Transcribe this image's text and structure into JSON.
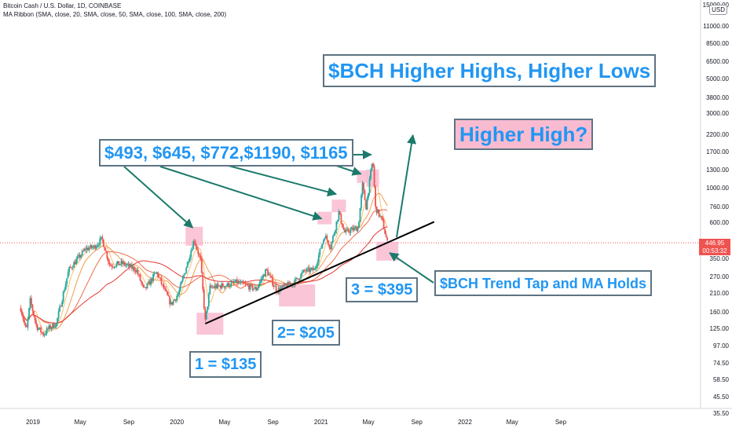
{
  "header": {
    "symbol_line": "Bitcoin Cash / U.S. Dollar, 1D, COINBASE",
    "indicator_line": "MA Ribbon (SMA, close, 20, SMA, close, 50, SMA, close, 100, SMA, close, 200)"
  },
  "currency_button": "USD",
  "price_axis": {
    "ticks": [
      "15000.00",
      "11000.00",
      "8500.00",
      "6500.00",
      "5000.00",
      "3800.00",
      "3000.00",
      "2200.00",
      "1700.00",
      "1300.00",
      "1000.00",
      "760.00",
      "600.00",
      "350.00",
      "270.00",
      "210.00",
      "160.00",
      "125.00",
      "97.00",
      "74.50",
      "58.50",
      "45.50",
      "35.50"
    ],
    "current_price": "446.95",
    "countdown": "00:53:32"
  },
  "time_axis": {
    "ticks": [
      "2019",
      "May",
      "Sep",
      "2020",
      "May",
      "Sep",
      "2021",
      "May",
      "Sep",
      "2022",
      "May",
      "Sep"
    ]
  },
  "annotations": {
    "title": "$BCH Higher Highs, Higher Lows",
    "higher_high": "Higher High?",
    "peaks": "$493, $645, $772,$1190, $1165",
    "low1": "1 = $135",
    "low2": "2= $205",
    "low3": "3 = $395",
    "trend_tap": "$BCH Trend Tap and MA Holds"
  },
  "colors": {
    "up_candle": "#26a69a",
    "down_candle": "#ef5350",
    "ma20": "#f6c26b",
    "ma50": "#f29b4c",
    "ma100": "#ee6a4a",
    "ma200": "#e53935",
    "arrow": "#1b7a6b",
    "trendline": "#000000",
    "callout_text": "#2196f3",
    "callout_border": "#5e7383",
    "pink_box": "#f8bbd0",
    "price_line": "#ef5350"
  },
  "chart_data": {
    "type": "candlestick",
    "title": "Bitcoin Cash / U.S. Dollar, 1D, COINBASE",
    "x_range": [
      "2018-12-01",
      "2022-10-15"
    ],
    "y_scale": "log",
    "y_range": [
      35.5,
      15000
    ],
    "last_price": 446.95,
    "price_path": [
      [
        "2018-12-01",
        170
      ],
      [
        "2018-12-15",
        120
      ],
      [
        "2018-12-25",
        190
      ],
      [
        "2019-01-10",
        130
      ],
      [
        "2019-01-28",
        115
      ],
      [
        "2019-02-08",
        125
      ],
      [
        "2019-03-01",
        135
      ],
      [
        "2019-04-02",
        300
      ],
      [
        "2019-05-15",
        410
      ],
      [
        "2019-06-05",
        420
      ],
      [
        "2019-06-25",
        475
      ],
      [
        "2019-07-15",
        320
      ],
      [
        "2019-08-15",
        330
      ],
      [
        "2019-09-20",
        300
      ],
      [
        "2019-10-10",
        220
      ],
      [
        "2019-11-10",
        290
      ],
      [
        "2019-12-17",
        180
      ],
      [
        "2020-01-05",
        210
      ],
      [
        "2020-02-14",
        470
      ],
      [
        "2020-03-01",
        345
      ],
      [
        "2020-03-13",
        140
      ],
      [
        "2020-03-25",
        230
      ],
      [
        "2020-05-10",
        240
      ],
      [
        "2020-06-01",
        250
      ],
      [
        "2020-07-20",
        225
      ],
      [
        "2020-08-15",
        300
      ],
      [
        "2020-09-10",
        220
      ],
      [
        "2020-10-25",
        250
      ],
      [
        "2020-11-20",
        295
      ],
      [
        "2020-12-15",
        300
      ],
      [
        "2021-01-10",
        500
      ],
      [
        "2021-01-25",
        420
      ],
      [
        "2021-02-15",
        700
      ],
      [
        "2021-03-01",
        520
      ],
      [
        "2021-04-05",
        560
      ],
      [
        "2021-04-16",
        1050
      ],
      [
        "2021-04-25",
        760
      ],
      [
        "2021-05-12",
        1550
      ],
      [
        "2021-05-19",
        750
      ],
      [
        "2021-06-05",
        620
      ],
      [
        "2021-06-18",
        447
      ]
    ],
    "annotated_peaks": [
      493,
      645,
      772,
      1190,
      1165
    ],
    "annotated_lows": [
      {
        "label": "1",
        "date": "2020-03-13",
        "value": 135
      },
      {
        "label": "2",
        "date": "2020-09-15",
        "value": 205
      },
      {
        "label": "3",
        "date": "2021-06-18",
        "value": 395
      }
    ],
    "moving_averages": [
      {
        "name": "SMA 20",
        "period": 20
      },
      {
        "name": "SMA 50",
        "period": 50
      },
      {
        "name": "SMA 100",
        "period": 100
      },
      {
        "name": "SMA 200",
        "period": 200
      }
    ],
    "trendline": {
      "from": [
        "2020-03-13",
        135
      ],
      "to": [
        "2021-10-15",
        610
      ]
    }
  }
}
